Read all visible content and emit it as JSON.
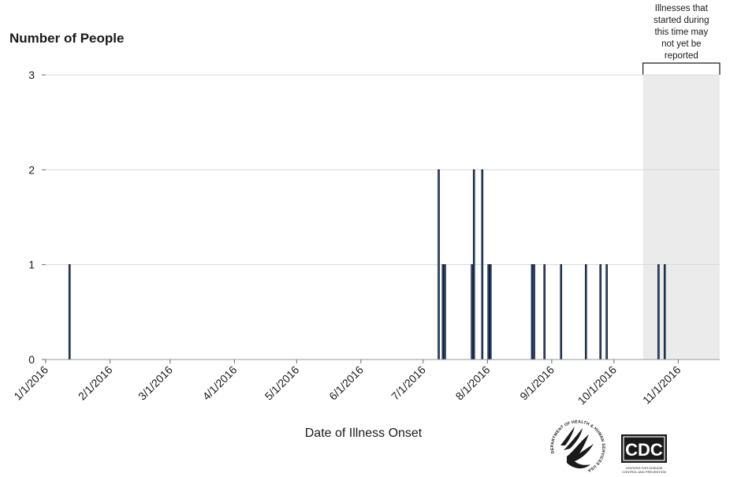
{
  "chart_data": {
    "type": "bar",
    "ylabel": "Number of People",
    "xlabel": "Date of Illness Onset",
    "ylim": [
      0,
      3
    ],
    "yticks": [
      "0",
      "1",
      "2",
      "3"
    ],
    "xlim": [
      "2016-01-01",
      "2016-11-21"
    ],
    "xticks": [
      "1/1/2016",
      "2/1/2016",
      "3/1/2016",
      "4/1/2016",
      "5/1/2016",
      "6/1/2016",
      "7/1/2016",
      "8/1/2016",
      "9/1/2016",
      "10/1/2016",
      "11/1/2016"
    ],
    "grid": "horizontal",
    "bar_color": "#4a6fa5",
    "points": [
      {
        "x": "2016-01-12",
        "y": 1
      },
      {
        "x": "2016-07-08",
        "y": 2
      },
      {
        "x": "2016-07-10",
        "y": 1
      },
      {
        "x": "2016-07-11",
        "y": 1
      },
      {
        "x": "2016-07-24",
        "y": 1
      },
      {
        "x": "2016-07-25",
        "y": 2
      },
      {
        "x": "2016-07-29",
        "y": 2
      },
      {
        "x": "2016-08-01",
        "y": 1
      },
      {
        "x": "2016-08-02",
        "y": 1
      },
      {
        "x": "2016-08-22",
        "y": 1
      },
      {
        "x": "2016-08-23",
        "y": 1
      },
      {
        "x": "2016-08-28",
        "y": 1
      },
      {
        "x": "2016-09-05",
        "y": 1
      },
      {
        "x": "2016-09-17",
        "y": 1
      },
      {
        "x": "2016-09-24",
        "y": 1
      },
      {
        "x": "2016-09-27",
        "y": 1
      },
      {
        "x": "2016-10-22",
        "y": 1
      },
      {
        "x": "2016-10-25",
        "y": 1
      }
    ],
    "shaded_region": {
      "start": "2016-10-15",
      "end": "2016-11-21",
      "label": "Illnesses that started during this time may not yet be reported",
      "label_lines": [
        "Illnesses that",
        "started during",
        "this time may",
        "not yet be",
        "reported"
      ],
      "color": "#ebebeb"
    }
  },
  "logos": {
    "hhs": "DEPARTMENT OF HEALTH & HUMAN SERVICES USA",
    "cdc": "CDC",
    "cdc_tagline_1": "CENTERS FOR DISEASE",
    "cdc_tagline_2": "CONTROL AND PREVENTION"
  }
}
